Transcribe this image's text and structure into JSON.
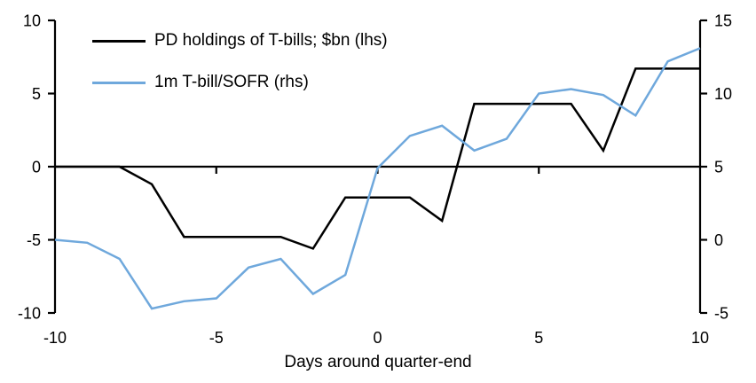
{
  "chart_data": {
    "type": "line",
    "title": "",
    "xlabel": "Days around quarter-end",
    "x": [
      -10,
      -9,
      -8,
      -7,
      -6,
      -5,
      -4,
      -3,
      -2,
      -1,
      0,
      1,
      2,
      3,
      4,
      5,
      6,
      7,
      8,
      9,
      10
    ],
    "x_axis": {
      "min": -10,
      "max": 10,
      "tick_labels": [
        -10,
        -5,
        0,
        5,
        10
      ],
      "inner_ticks": [
        -5,
        0,
        5
      ]
    },
    "left_axis": {
      "min": -10,
      "max": 10,
      "ticks": [
        10,
        5,
        0,
        -5,
        -10
      ]
    },
    "right_axis": {
      "min": -5,
      "max": 15,
      "ticks": [
        15,
        10,
        5,
        0,
        -5
      ]
    },
    "zero_line": true,
    "grid": false,
    "legend_position": "top-left",
    "series": [
      {
        "name": "PD holdings of T-bills; $bn (lhs)",
        "axis": "left",
        "color": "#000000",
        "values": [
          0,
          0,
          0,
          -1.2,
          -4.8,
          -4.8,
          -4.8,
          -4.8,
          -5.6,
          -2.1,
          -2.1,
          -2.1,
          -3.7,
          4.3,
          4.3,
          4.3,
          4.3,
          1.1,
          6.7,
          6.7,
          6.7
        ]
      },
      {
        "name": "1m T-bill/SOFR (rhs)",
        "axis": "right",
        "color": "#6FA8DC",
        "values": [
          0,
          -0.2,
          -1.3,
          -4.7,
          -4.2,
          -4.0,
          -1.9,
          -1.3,
          -3.7,
          -2.4,
          4.9,
          7.1,
          7.8,
          6.1,
          6.9,
          10.0,
          10.3,
          9.9,
          8.5,
          12.2,
          13.1
        ]
      }
    ]
  }
}
